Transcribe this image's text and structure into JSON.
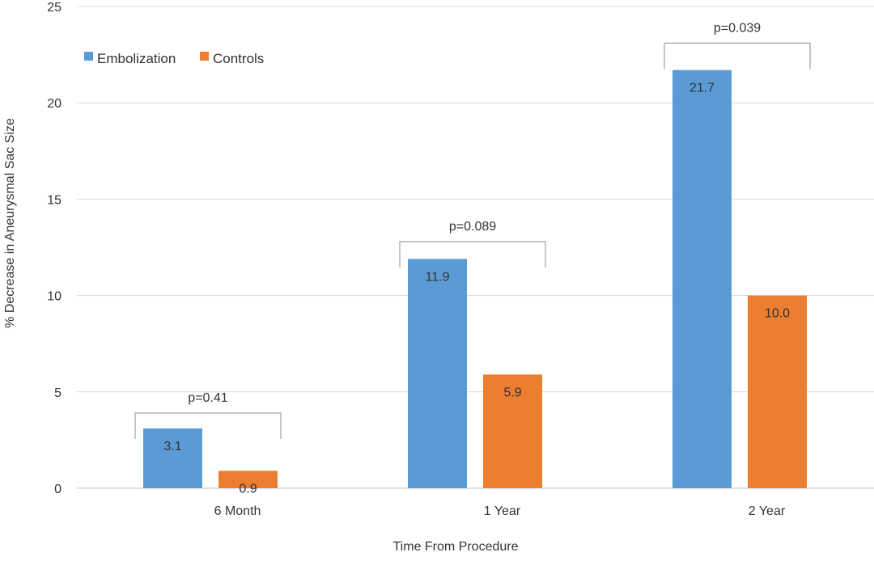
{
  "chart_data": {
    "type": "bar",
    "title": "",
    "xlabel": "Time From Procedure",
    "ylabel": "% Decrease in Aneurysmal Sac Size",
    "categories": [
      "6 Month",
      "1 Year",
      "2 Year"
    ],
    "series": [
      {
        "name": "Embolization",
        "color": "#5B9BD5",
        "values": [
          3.1,
          11.9,
          21.7
        ],
        "labels": [
          "3.1",
          "11.9",
          "21.7"
        ]
      },
      {
        "name": "Controls",
        "color": "#ED7D31",
        "values": [
          0.9,
          5.9,
          10.0
        ],
        "labels": [
          "0.9",
          "5.9",
          "10.0"
        ]
      }
    ],
    "ylim": [
      0,
      25
    ],
    "yticks": [
      0,
      5,
      10,
      15,
      20,
      25
    ],
    "grid": true,
    "legend": "top-left",
    "annotations": [
      {
        "text": "p=0.41",
        "category": "6 Month",
        "bracket_top": 3.9
      },
      {
        "text": "p=0.089",
        "category": "1 Year",
        "bracket_top": 12.8
      },
      {
        "text": "p=0.039",
        "category": "2 Year",
        "bracket_top": 23.1
      }
    ]
  }
}
